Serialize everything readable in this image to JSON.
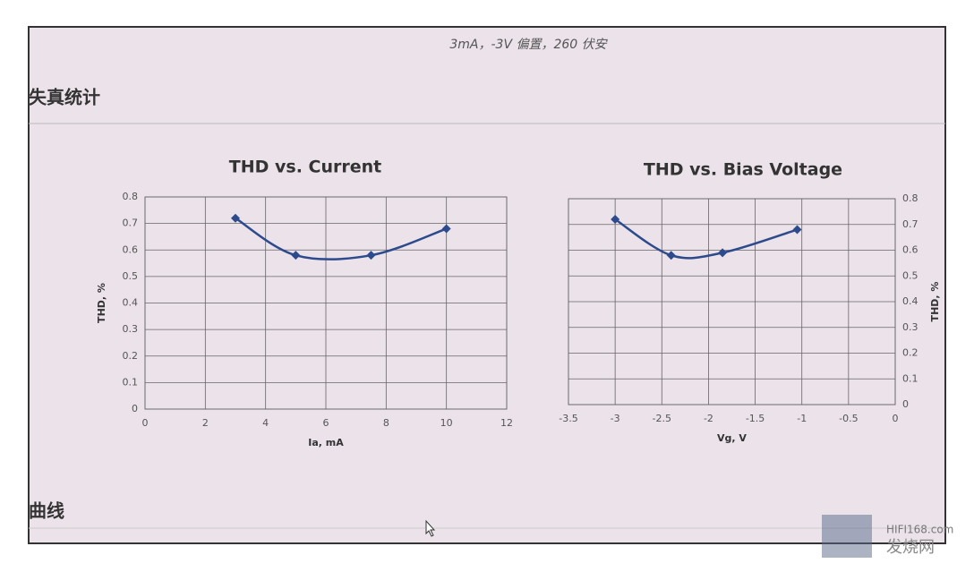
{
  "caption": "3mA，-3V 偏置，260 伏安",
  "section_title": "失真统计",
  "next_section_title": "曲线",
  "watermark": {
    "site": "HIFI168.com",
    "name": "发烧网"
  },
  "chart_data": [
    {
      "type": "line",
      "title": "THD vs. Current",
      "x_label": "Ia, mA",
      "y_label": "THD, %",
      "x": [
        3,
        5,
        7.5,
        10
      ],
      "values": [
        0.72,
        0.58,
        0.58,
        0.68
      ],
      "color": "#2c4a8c",
      "xlim": [
        0,
        12
      ],
      "xticks": [
        0,
        2,
        4,
        6,
        8,
        10,
        12
      ],
      "ylim": [
        0,
        0.8
      ],
      "yticks": [
        0,
        0.1,
        0.2,
        0.3,
        0.4,
        0.5,
        0.6,
        0.7,
        0.8
      ],
      "grid": true,
      "smooth": true,
      "marker": "diamond",
      "y_axis_side": "left"
    },
    {
      "type": "line",
      "title": "THD vs. Bias Voltage",
      "x_label": "Vg, V",
      "y_label": "THD, %",
      "x": [
        -3,
        -2.4,
        -1.85,
        -1.05
      ],
      "values": [
        0.72,
        0.58,
        0.59,
        0.68
      ],
      "color": "#2c4a8c",
      "xlim": [
        -3.5,
        0
      ],
      "xticks": [
        -3.5,
        -3,
        -2.5,
        -2,
        -1.5,
        -1,
        -0.5,
        0
      ],
      "ylim": [
        0,
        0.8
      ],
      "yticks": [
        0,
        0.1,
        0.2,
        0.3,
        0.4,
        0.5,
        0.6,
        0.7,
        0.8
      ],
      "grid": true,
      "smooth": true,
      "marker": "diamond",
      "y_axis_side": "right"
    }
  ]
}
